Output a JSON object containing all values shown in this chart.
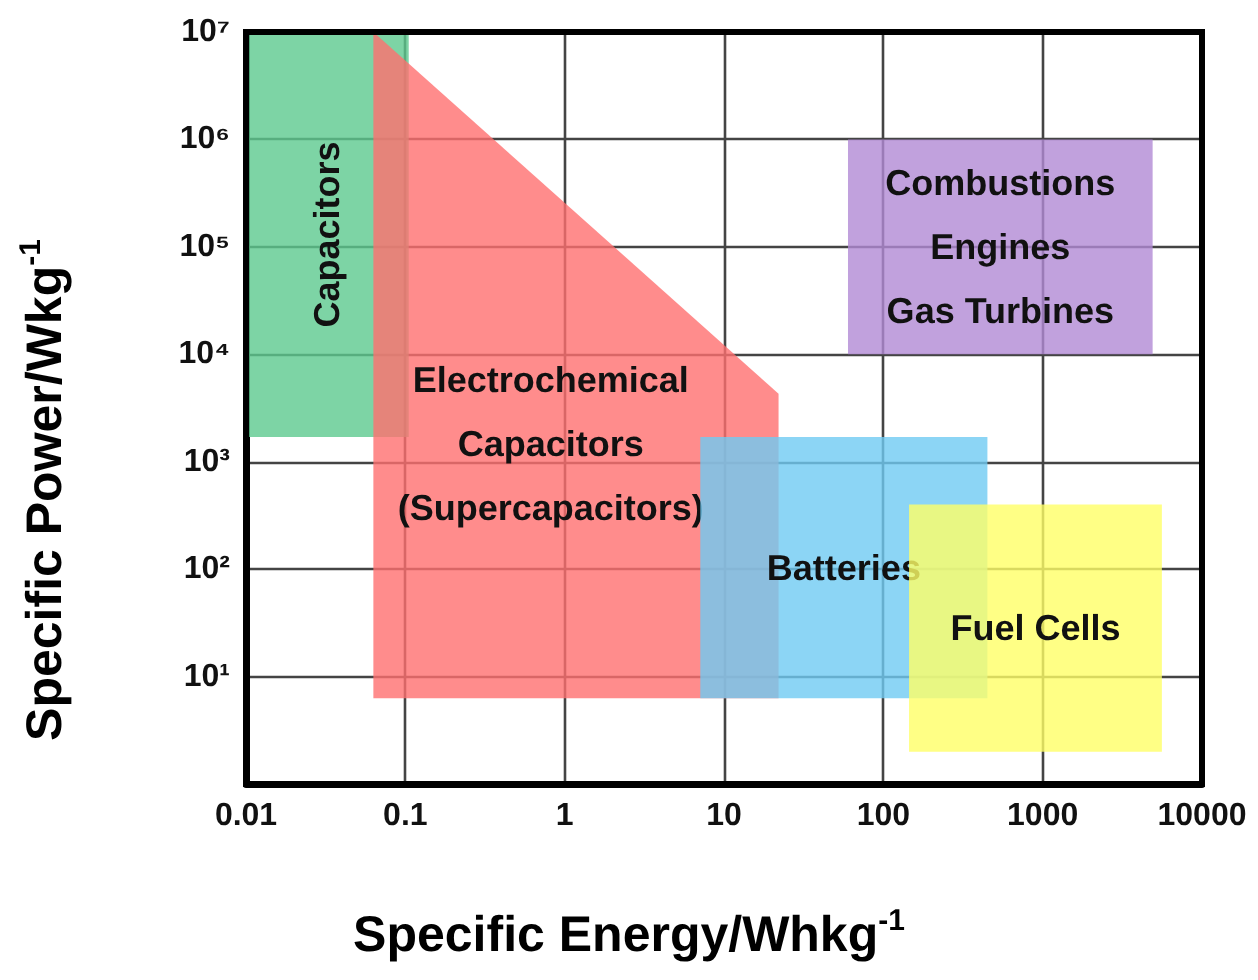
{
  "chart_data": {
    "type": "area",
    "xlabel": "Specific Energy/Whkg$^{-1}$",
    "ylabel": "Specific Power/Wkg$^{-1}$",
    "log": "xy",
    "grid": true,
    "xlim": [
      0.01,
      10000
    ],
    "ylim": [
      1,
      10000000
    ],
    "xticks": [
      0.01,
      0.1,
      1,
      10,
      100,
      1000,
      10000
    ],
    "yticks": [
      {
        "value": 1,
        "label": null
      },
      {
        "value": 10,
        "label": "10¹"
      },
      {
        "value": 100,
        "label": "10²"
      },
      {
        "value": 1000,
        "label": "10³"
      },
      {
        "value": 10000,
        "label": "10⁴"
      },
      {
        "value": 100000,
        "label": "10⁵"
      },
      {
        "value": 1000000,
        "label": "10⁶"
      },
      {
        "value": 10000000,
        "label": "10⁷"
      }
    ],
    "series": [
      {
        "name": "Capacitors",
        "color": "#5cc98e",
        "x": [
          0.01,
          0.105,
          0.105,
          0.01
        ],
        "values": [
          1700,
          1700,
          10000000,
          10000000
        ]
      },
      {
        "name": "Electrochemical\nCapacitors\n(Supercapacitors)",
        "color": "#ff6f6f",
        "x": [
          0.063,
          22,
          22,
          0.063
        ],
        "values": [
          6.3,
          6.3,
          4300,
          10000000
        ]
      },
      {
        "name": "Batteries",
        "color": "#6fcbf2",
        "x": [
          7.1,
          450,
          450,
          7.1
        ],
        "values": [
          6.3,
          6.3,
          1700,
          1700
        ]
      },
      {
        "name": "Fuel Cells",
        "color": "#ffff66",
        "x": [
          145,
          5600,
          5600,
          145
        ],
        "values": [
          2,
          2,
          400,
          400
        ]
      },
      {
        "name": "Combustions\nEngines\nGas Turbines",
        "color": "#b28ad4",
        "x": [
          60,
          4900,
          4900,
          60
        ],
        "values": [
          10000,
          10000,
          1000000,
          1000000
        ]
      }
    ]
  }
}
